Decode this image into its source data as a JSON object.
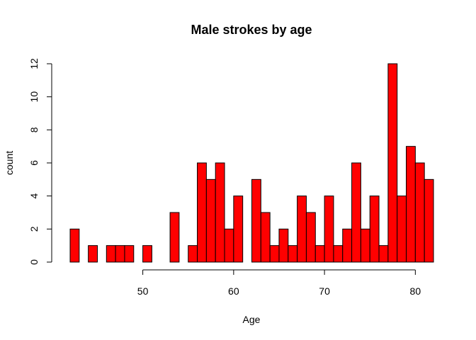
{
  "chart_data": {
    "type": "bar",
    "title": "Male strokes by age",
    "xlabel": "Age",
    "ylabel": "count",
    "bin_width": 1,
    "bin_starts": [
      42,
      43,
      44,
      45,
      46,
      47,
      48,
      49,
      50,
      51,
      52,
      53,
      54,
      55,
      56,
      57,
      58,
      59,
      60,
      61,
      62,
      63,
      64,
      65,
      66,
      67,
      68,
      69,
      70,
      71,
      72,
      73,
      74,
      75,
      76,
      77,
      78,
      79,
      80,
      81
    ],
    "values": [
      2,
      0,
      1,
      0,
      1,
      1,
      1,
      0,
      1,
      0,
      0,
      3,
      0,
      1,
      6,
      5,
      6,
      2,
      4,
      0,
      5,
      3,
      1,
      2,
      1,
      4,
      3,
      1,
      4,
      1,
      2,
      6,
      2,
      4,
      1,
      12,
      4,
      7,
      6,
      5
    ],
    "xlim": [
      42,
      82
    ],
    "ylim": [
      0,
      12
    ],
    "x_ticks": [
      "50",
      "60",
      "70",
      "80"
    ],
    "y_ticks": [
      "0",
      "2",
      "4",
      "6",
      "8",
      "10",
      "12"
    ],
    "bar_color": "#ff0000",
    "bar_border_color": "#000000",
    "grid": false,
    "legend": "none"
  }
}
